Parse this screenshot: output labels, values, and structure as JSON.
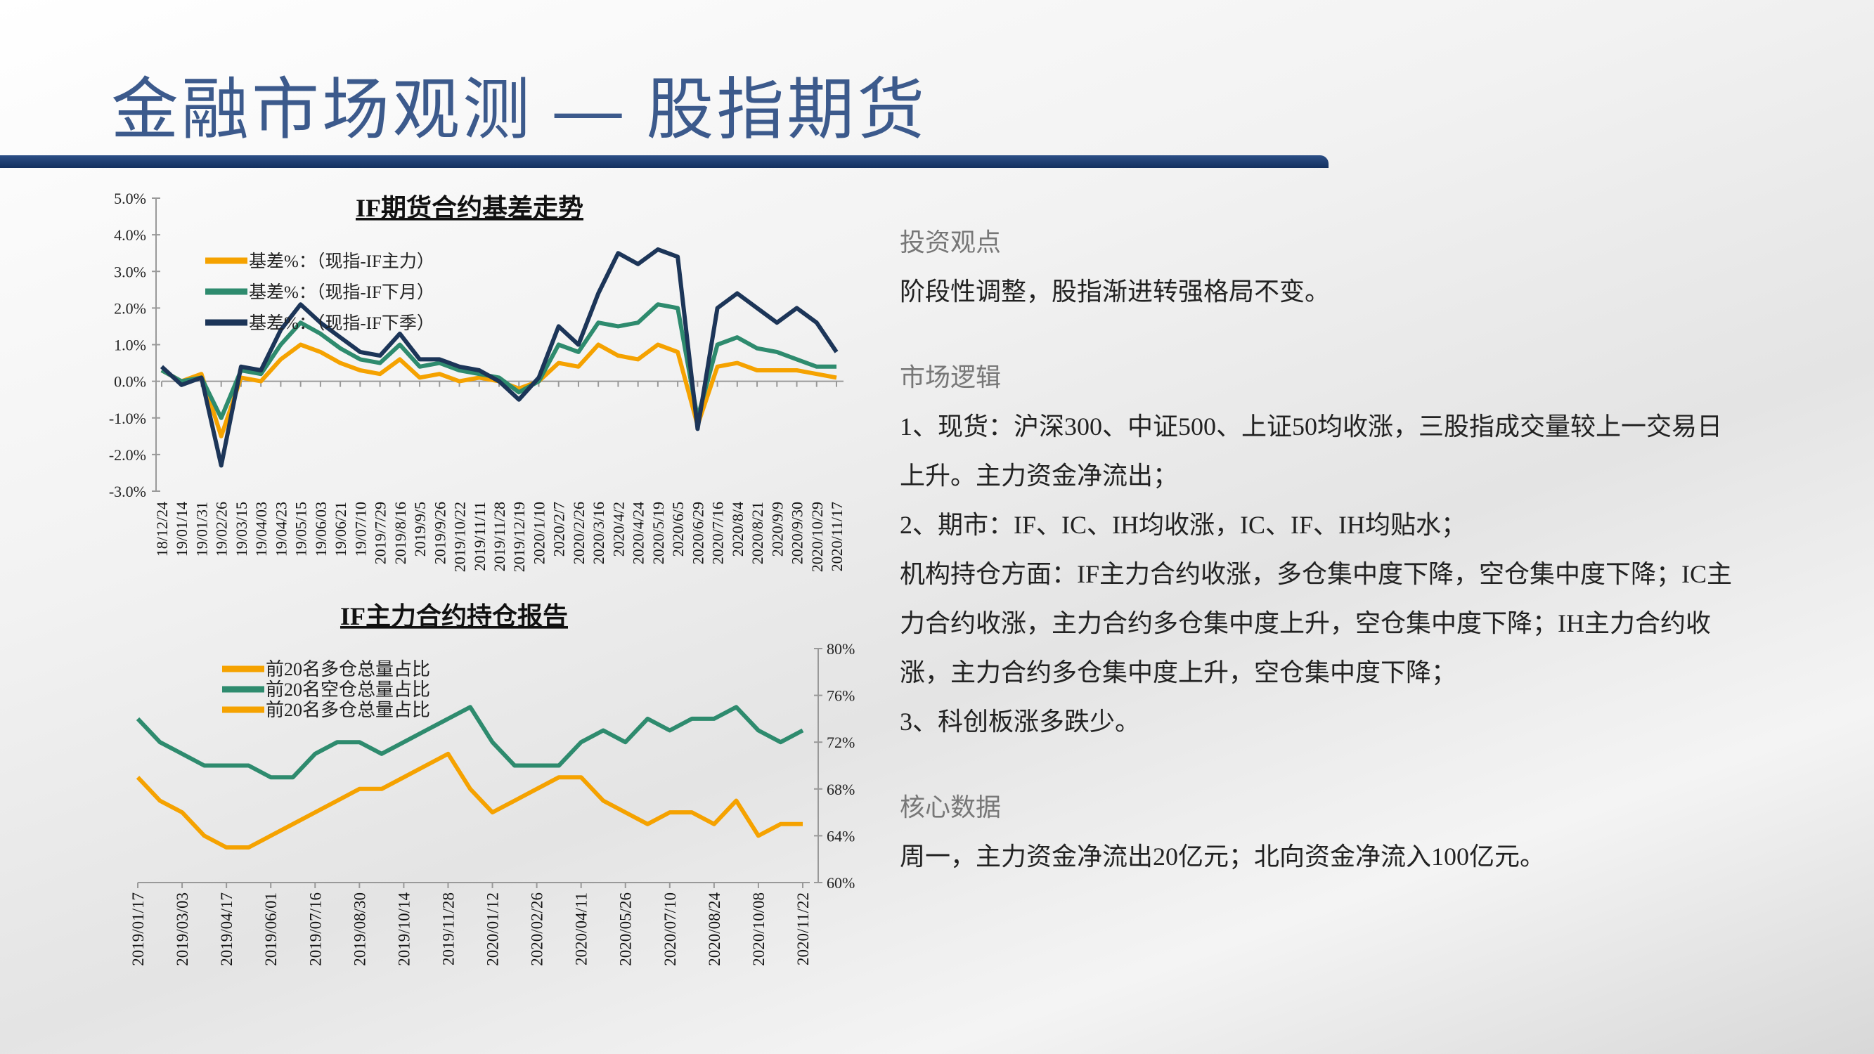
{
  "header": {
    "title": "金融市场观测 — 股指期货"
  },
  "sections": [
    {
      "heading": "投资观点",
      "paragraphs": [
        "阶段性调整，股指渐进转强格局不变。"
      ]
    },
    {
      "heading": "市场逻辑",
      "paragraphs": [
        "1、现货：沪深300、中证500、上证50均收涨，三股指成交量较上一交易日上升。主力资金净流出；",
        "2、期市：IF、IC、IH均收涨，IC、IF、IH均贴水；",
        "机构持仓方面：IF主力合约收涨，多仓集中度下降，空仓集中度下降；IC主力合约收涨，主力合约多仓集中度上升，空仓集中度下降；IH主力合约收涨，主力合约多仓集中度上升，空仓集中度下降；",
        "3、科创板涨多跌少。"
      ]
    },
    {
      "heading": "核心数据",
      "paragraphs": [
        "周一，主力资金净流出20亿元；北向资金净流入100亿元。"
      ]
    }
  ],
  "chart_data": [
    {
      "type": "line",
      "title": "IF期货合约基差走势",
      "categories": [
        "18/12/24",
        "19/01/14",
        "19/01/31",
        "19/02/26",
        "19/03/15",
        "19/04/03",
        "19/04/23",
        "19/05/15",
        "19/06/03",
        "19/06/21",
        "19/07/10",
        "2019/7/29",
        "2019/8/16",
        "2019/9/5",
        "2019/9/26",
        "2019/10/22",
        "2019/11/11",
        "2019/11/28",
        "2019/12/19",
        "2020/1/10",
        "2020/2/7",
        "2020/2/26",
        "2020/3/16",
        "2020/4/2",
        "2020/4/24",
        "2020/5/19",
        "2020/6/5",
        "2020/6/29",
        "2020/7/16",
        "2020/8/4",
        "2020/8/21",
        "2020/9/9",
        "2020/9/30",
        "2020/10/29",
        "2020/11/17"
      ],
      "series": [
        {
          "name": "基差%：（现指-IF主力）",
          "color": "#f5a200",
          "values": [
            0.3,
            0.0,
            0.2,
            -1.5,
            0.1,
            0.0,
            0.6,
            1.0,
            0.8,
            0.5,
            0.3,
            0.2,
            0.6,
            0.1,
            0.2,
            0.0,
            0.1,
            0.0,
            -0.2,
            0.0,
            0.5,
            0.4,
            1.0,
            0.7,
            0.6,
            1.0,
            0.8,
            -1.2,
            0.4,
            0.5,
            0.3,
            0.3,
            0.3,
            0.2,
            0.1
          ]
        },
        {
          "name": "基差%：（现指-IF下月）",
          "color": "#2e8b6e",
          "values": [
            0.3,
            0.0,
            0.1,
            -1.0,
            0.3,
            0.2,
            1.0,
            1.6,
            1.3,
            0.9,
            0.6,
            0.5,
            1.0,
            0.4,
            0.5,
            0.3,
            0.2,
            0.1,
            -0.3,
            0.0,
            1.0,
            0.8,
            1.6,
            1.5,
            1.6,
            2.1,
            2.0,
            -1.0,
            1.0,
            1.2,
            0.9,
            0.8,
            0.6,
            0.4,
            0.4
          ]
        },
        {
          "name": "基差%：（现指-IF下季）",
          "color": "#1c3558",
          "values": [
            0.4,
            -0.1,
            0.1,
            -2.3,
            0.4,
            0.3,
            1.4,
            2.1,
            1.6,
            1.2,
            0.8,
            0.7,
            1.3,
            0.6,
            0.6,
            0.4,
            0.3,
            0.0,
            -0.5,
            0.1,
            1.5,
            1.0,
            2.4,
            3.5,
            3.2,
            3.6,
            3.4,
            -1.3,
            2.0,
            2.4,
            2.0,
            1.6,
            2.0,
            1.6,
            0.8
          ]
        }
      ],
      "ylim": [
        -3,
        5
      ],
      "yticks": [
        {
          "value": 5,
          "label": "5.0%"
        },
        {
          "value": 4,
          "label": "4.0%"
        },
        {
          "value": 3,
          "label": "3.0%"
        },
        {
          "value": 2,
          "label": "2.0%"
        },
        {
          "value": 1,
          "label": "1.0%"
        },
        {
          "value": 0,
          "label": "0.0%"
        },
        {
          "value": -1,
          "label": "-1.0%"
        },
        {
          "value": -2,
          "label": "-2.0%"
        },
        {
          "value": -3,
          "label": "-3.0%"
        }
      ]
    },
    {
      "type": "line",
      "title": "IF主力合约持仓报告",
      "categories": [
        "2019/01/17",
        null,
        "2019/03/03",
        null,
        "2019/04/17",
        null,
        "2019/06/01",
        null,
        "2019/07/16",
        null,
        "2019/08/30",
        null,
        "2019/10/14",
        null,
        "2019/11/28",
        null,
        "2020/01/12",
        null,
        "2020/02/26",
        null,
        "2020/04/11",
        null,
        "2020/05/26",
        null,
        "2020/07/10",
        null,
        "2020/08/24",
        null,
        "2020/10/08",
        null,
        "2020/11/22"
      ],
      "series": [
        {
          "name": "前20名多仓总量占比",
          "color": "#f5a200",
          "axis": "y2",
          "values": [
            69,
            67,
            66,
            64,
            63,
            63,
            64,
            65,
            66,
            67,
            68,
            68,
            69,
            70,
            71,
            68,
            66,
            67,
            68,
            69,
            69,
            67,
            66,
            65,
            66,
            66,
            65,
            67,
            64,
            65,
            65
          ]
        },
        {
          "name": "前20名空仓总量占比",
          "color": "#2e8b6e",
          "axis": "y2",
          "values": [
            74,
            72,
            71,
            70,
            70,
            70,
            69,
            69,
            71,
            72,
            72,
            71,
            72,
            73,
            74,
            75,
            72,
            70,
            70,
            70,
            72,
            73,
            72,
            74,
            73,
            74,
            74,
            75,
            73,
            72,
            73
          ]
        },
        {
          "name": "前20名多仓总量占比",
          "color": "#f5a200",
          "axis": "y2",
          "values": [
            null,
            null,
            null,
            null,
            null,
            null,
            null,
            null,
            null,
            null,
            null,
            null,
            null,
            null,
            null,
            null,
            null,
            null,
            null,
            null,
            null,
            null,
            null,
            null,
            null,
            null,
            null,
            null,
            null,
            null,
            null
          ]
        }
      ],
      "y2lim": [
        60,
        80
      ],
      "y2ticks": [
        {
          "value": 80,
          "label": "80%"
        },
        {
          "value": 76,
          "label": "76%"
        },
        {
          "value": 72,
          "label": "72%"
        },
        {
          "value": 68,
          "label": "68%"
        },
        {
          "value": 64,
          "label": "64%"
        },
        {
          "value": 60,
          "label": "60%"
        }
      ]
    }
  ]
}
